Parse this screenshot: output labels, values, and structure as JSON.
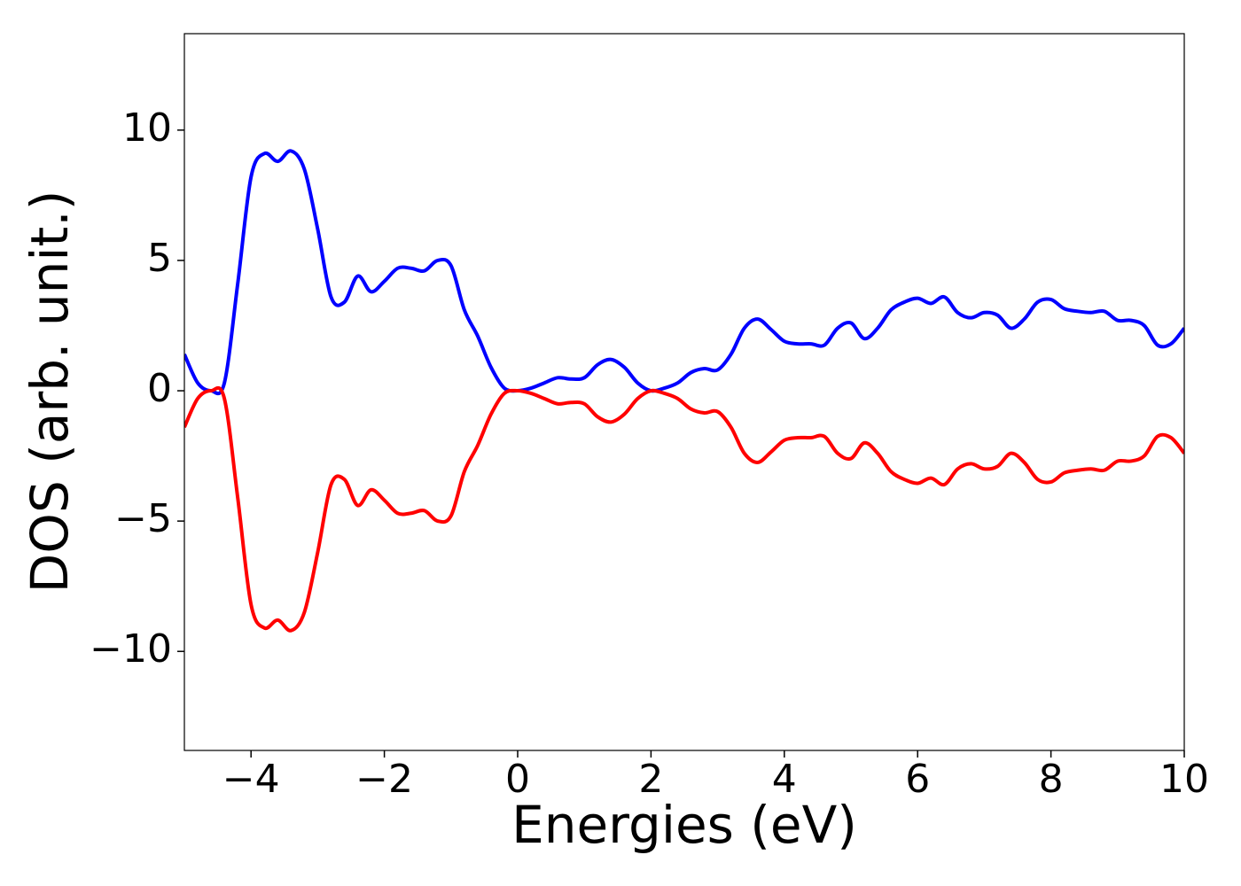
{
  "chart_data": {
    "type": "line",
    "xlabel": "Energies (eV)",
    "ylabel": "DOS (arb. unit.)",
    "x": [
      -5.0,
      -4.8,
      -4.6,
      -4.4,
      -4.2,
      -4.0,
      -3.8,
      -3.6,
      -3.4,
      -3.2,
      -3.0,
      -2.8,
      -2.6,
      -2.4,
      -2.2,
      -2.0,
      -1.8,
      -1.6,
      -1.4,
      -1.2,
      -1.0,
      -0.8,
      -0.6,
      -0.4,
      -0.2,
      0.0,
      0.2,
      0.4,
      0.6,
      0.8,
      1.0,
      1.2,
      1.4,
      1.6,
      1.8,
      2.0,
      2.2,
      2.4,
      2.6,
      2.8,
      3.0,
      3.2,
      3.4,
      3.6,
      3.8,
      4.0,
      4.2,
      4.4,
      4.6,
      4.8,
      5.0,
      5.2,
      5.4,
      5.6,
      5.8,
      6.0,
      6.2,
      6.4,
      6.6,
      6.8,
      7.0,
      7.2,
      7.4,
      7.6,
      7.8,
      8.0,
      8.2,
      8.4,
      8.6,
      8.8,
      9.0,
      9.2,
      9.4,
      9.6,
      9.8,
      10.0
    ],
    "series": [
      {
        "color": "#0000ff",
        "values": [
          1.4,
          0.3,
          0.0,
          0.3,
          4.1,
          8.2,
          9.1,
          8.8,
          9.2,
          8.5,
          6.2,
          3.6,
          3.4,
          4.4,
          3.8,
          4.2,
          4.7,
          4.7,
          4.6,
          5.0,
          4.8,
          3.1,
          2.1,
          0.9,
          0.1,
          0.0,
          0.1,
          0.3,
          0.5,
          0.45,
          0.5,
          1.0,
          1.2,
          0.9,
          0.3,
          0.0,
          0.1,
          0.3,
          0.7,
          0.85,
          0.8,
          1.4,
          2.4,
          2.75,
          2.35,
          1.9,
          1.8,
          1.8,
          1.75,
          2.4,
          2.6,
          2.0,
          2.4,
          3.1,
          3.4,
          3.55,
          3.35,
          3.6,
          3.0,
          2.8,
          3.0,
          2.9,
          2.4,
          2.75,
          3.4,
          3.5,
          3.15,
          3.05,
          3.0,
          3.05,
          2.7,
          2.7,
          2.5,
          1.75,
          1.8,
          2.4
        ]
      },
      {
        "color": "#ff0000",
        "values": [
          -1.4,
          -0.3,
          0.0,
          -0.3,
          -4.1,
          -8.2,
          -9.1,
          -8.8,
          -9.2,
          -8.5,
          -6.2,
          -3.6,
          -3.4,
          -4.4,
          -3.8,
          -4.2,
          -4.7,
          -4.7,
          -4.6,
          -5.0,
          -4.8,
          -3.1,
          -2.1,
          -0.9,
          -0.1,
          0.0,
          -0.1,
          -0.3,
          -0.5,
          -0.45,
          -0.5,
          -1.0,
          -1.2,
          -0.9,
          -0.3,
          0.0,
          -0.1,
          -0.3,
          -0.7,
          -0.85,
          -0.8,
          -1.4,
          -2.4,
          -2.75,
          -2.35,
          -1.9,
          -1.8,
          -1.8,
          -1.75,
          -2.4,
          -2.6,
          -2.0,
          -2.4,
          -3.1,
          -3.4,
          -3.55,
          -3.35,
          -3.6,
          -3.0,
          -2.8,
          -3.0,
          -2.9,
          -2.4,
          -2.75,
          -3.4,
          -3.5,
          -3.15,
          -3.05,
          -3.0,
          -3.05,
          -2.7,
          -2.7,
          -2.5,
          -1.75,
          -1.8,
          -2.4
        ]
      }
    ],
    "xlim": [
      -5,
      10
    ],
    "xticks": [
      {
        "value": -4,
        "label": "−4"
      },
      {
        "value": -2,
        "label": "−2"
      },
      0,
      2,
      4,
      6,
      8,
      10
    ],
    "ylim": [
      -13.8,
      13.7
    ],
    "yticks": [
      {
        "value": -10,
        "label": "−10"
      },
      {
        "value": -5,
        "label": "−5"
      },
      0,
      5,
      10
    ],
    "grid": false
  }
}
